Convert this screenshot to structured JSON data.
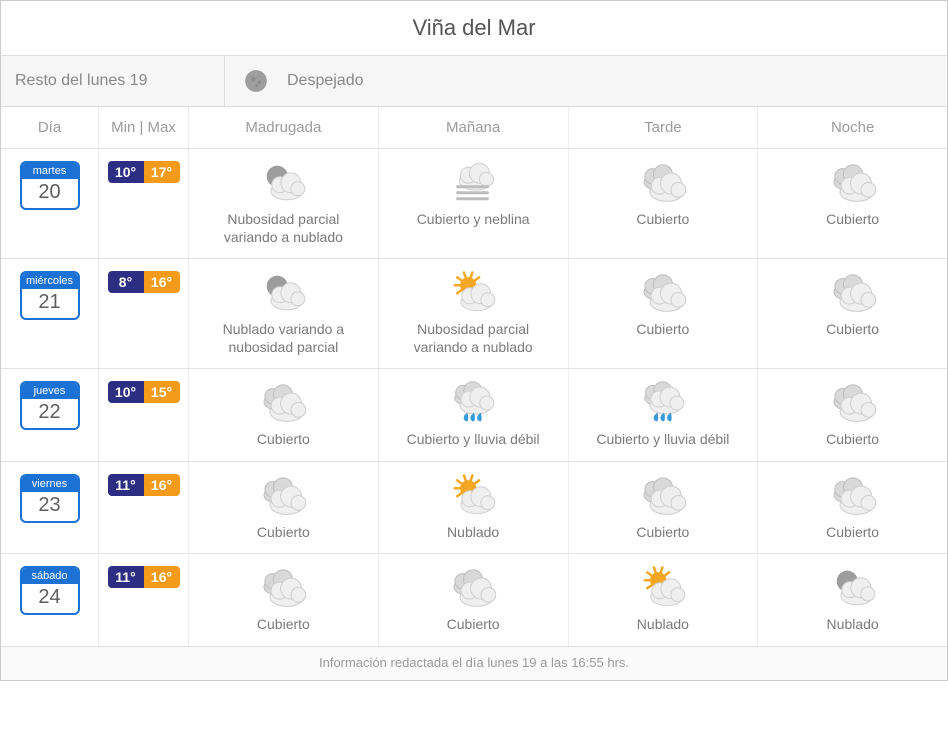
{
  "location": "Viña del Mar",
  "current": {
    "label": "Resto del lunes 19",
    "condition": "Despejado",
    "icon": "moon"
  },
  "headers": {
    "day": "Día",
    "minmax": "Min | Max",
    "parts": [
      "Madrugada",
      "Mañana",
      "Tarde",
      "Noche"
    ]
  },
  "colors": {
    "min_bg": "#2b2e83",
    "max_bg": "#f59b1c",
    "chip_border": "#1c72d4"
  },
  "days": [
    {
      "dow": "martes",
      "num": "20",
      "min": "10°",
      "max": "17°",
      "parts": [
        {
          "icon": "moon-cloud",
          "desc": "Nubosidad parcial variando a nublado"
        },
        {
          "icon": "fog-cloud",
          "desc": "Cubierto y neblina"
        },
        {
          "icon": "overcast",
          "desc": "Cubierto"
        },
        {
          "icon": "overcast",
          "desc": "Cubierto"
        }
      ]
    },
    {
      "dow": "miércoles",
      "num": "21",
      "min": "8°",
      "max": "16°",
      "parts": [
        {
          "icon": "moon-cloud",
          "desc": "Nublado variando a nubosidad parcial"
        },
        {
          "icon": "sun-cloud",
          "desc": "Nubosidad parcial variando a nublado"
        },
        {
          "icon": "overcast",
          "desc": "Cubierto"
        },
        {
          "icon": "overcast",
          "desc": "Cubierto"
        }
      ]
    },
    {
      "dow": "jueves",
      "num": "22",
      "min": "10°",
      "max": "15°",
      "parts": [
        {
          "icon": "overcast",
          "desc": "Cubierto"
        },
        {
          "icon": "rain",
          "desc": "Cubierto y lluvia débil"
        },
        {
          "icon": "rain",
          "desc": "Cubierto y lluvia débil"
        },
        {
          "icon": "overcast",
          "desc": "Cubierto"
        }
      ]
    },
    {
      "dow": "viernes",
      "num": "23",
      "min": "11°",
      "max": "16°",
      "parts": [
        {
          "icon": "overcast",
          "desc": "Cubierto"
        },
        {
          "icon": "sun-cloud",
          "desc": "Nublado"
        },
        {
          "icon": "overcast",
          "desc": "Cubierto"
        },
        {
          "icon": "overcast",
          "desc": "Cubierto"
        }
      ]
    },
    {
      "dow": "sábado",
      "num": "24",
      "min": "11°",
      "max": "16°",
      "parts": [
        {
          "icon": "overcast",
          "desc": "Cubierto"
        },
        {
          "icon": "overcast",
          "desc": "Cubierto"
        },
        {
          "icon": "sun-cloud",
          "desc": "Nublado"
        },
        {
          "icon": "moon-cloud",
          "desc": "Nublado"
        }
      ]
    }
  ],
  "footer": "Información redactada el día lunes 19 a las 16:55 hrs."
}
